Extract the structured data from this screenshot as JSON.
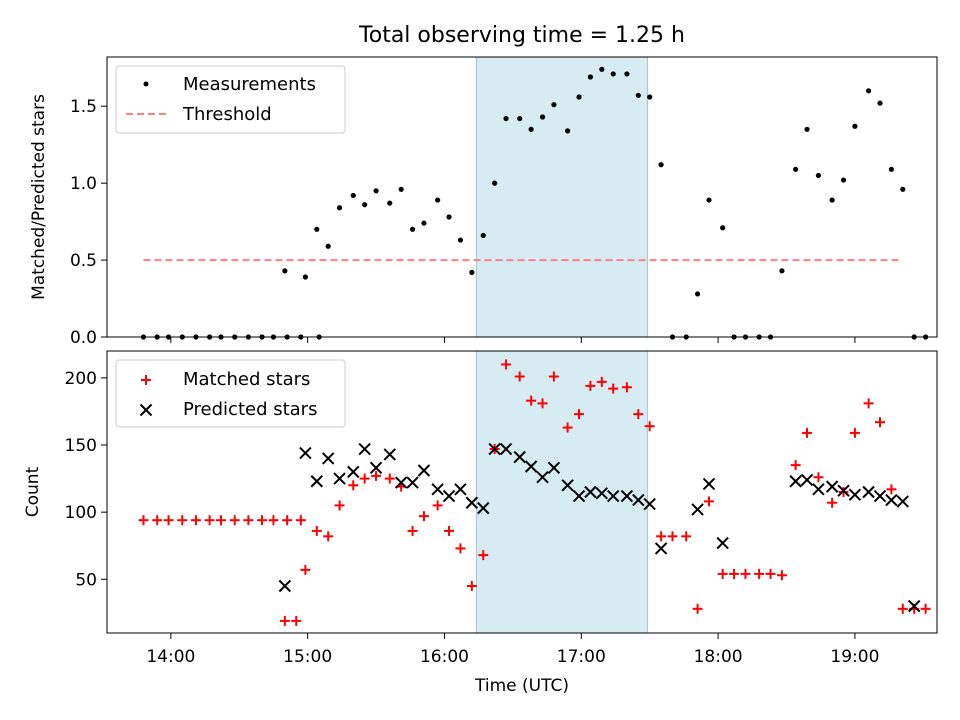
{
  "chart_data": [
    {
      "type": "scatter",
      "title": "Total observing time = 1.25 h",
      "xlabel": "",
      "ylabel": "Matched/Predicted stars",
      "ylim": [
        0,
        1.82
      ],
      "xlim": [
        "13:32",
        "19:36"
      ],
      "yticks": [
        "0.0",
        "0.5",
        "1.0",
        "1.5"
      ],
      "highlight_span": {
        "start": "16:14",
        "end": "17:29",
        "color": "#add8e6"
      },
      "legend": {
        "placement": "top-left",
        "entries": [
          "Measurements",
          "Threshold"
        ]
      },
      "threshold": {
        "name": "Threshold",
        "value": 0.5,
        "x_range": [
          "13:48",
          "19:20"
        ],
        "color": "#ff7f7f",
        "style": "dashed"
      },
      "series": [
        {
          "name": "Measurements",
          "color": "#000000",
          "marker": "dot",
          "points": [
            [
              "13:48",
              0
            ],
            [
              "13:54",
              0
            ],
            [
              "13:59",
              0
            ],
            [
              "14:05",
              0
            ],
            [
              "14:11",
              0
            ],
            [
              "14:17",
              0
            ],
            [
              "14:22",
              0
            ],
            [
              "14:28",
              0
            ],
            [
              "14:34",
              0
            ],
            [
              "14:40",
              0
            ],
            [
              "14:45",
              0
            ],
            [
              "14:51",
              0
            ],
            [
              "14:57",
              0
            ],
            [
              "14:50",
              0.43
            ],
            [
              "15:05",
              0
            ],
            [
              "14:59",
              0.39
            ],
            [
              "15:04",
              0.7
            ],
            [
              "15:09",
              0.59
            ],
            [
              "15:14",
              0.84
            ],
            [
              "15:20",
              0.92
            ],
            [
              "15:25",
              0.86
            ],
            [
              "15:30",
              0.95
            ],
            [
              "15:36",
              0.87
            ],
            [
              "15:41",
              0.96
            ],
            [
              "15:46",
              0.7
            ],
            [
              "15:51",
              0.74
            ],
            [
              "15:57",
              0.89
            ],
            [
              "16:02",
              0.78
            ],
            [
              "16:07",
              0.63
            ],
            [
              "16:12",
              0.42
            ],
            [
              "16:17",
              0.66
            ],
            [
              "16:22",
              1.0
            ],
            [
              "16:27",
              1.42
            ],
            [
              "16:33",
              1.42
            ],
            [
              "16:38",
              1.35
            ],
            [
              "16:43",
              1.43
            ],
            [
              "16:48",
              1.51
            ],
            [
              "16:54",
              1.34
            ],
            [
              "16:59",
              1.56
            ],
            [
              "17:04",
              1.69
            ],
            [
              "17:09",
              1.74
            ],
            [
              "17:14",
              1.71
            ],
            [
              "17:20",
              1.71
            ],
            [
              "17:25",
              1.57
            ],
            [
              "17:30",
              1.56
            ],
            [
              "17:35",
              1.12
            ],
            [
              "17:40",
              0
            ],
            [
              "17:46",
              0
            ],
            [
              "17:51",
              0.28
            ],
            [
              "17:56",
              0.89
            ],
            [
              "18:02",
              0.71
            ],
            [
              "18:07",
              0
            ],
            [
              "18:12",
              0
            ],
            [
              "18:18",
              0
            ],
            [
              "18:23",
              0
            ],
            [
              "18:28",
              0.43
            ],
            [
              "18:34",
              1.09
            ],
            [
              "18:39",
              1.35
            ],
            [
              "18:44",
              1.05
            ],
            [
              "18:50",
              0.89
            ],
            [
              "18:55",
              1.02
            ],
            [
              "19:00",
              1.37
            ],
            [
              "19:06",
              1.6
            ],
            [
              "19:11",
              1.52
            ],
            [
              "19:16",
              1.09
            ],
            [
              "19:21",
              0.96
            ],
            [
              "19:26",
              0
            ],
            [
              "19:31",
              0
            ]
          ]
        }
      ]
    },
    {
      "type": "scatter",
      "title": "",
      "xlabel": "Time (UTC)",
      "ylabel": "Count",
      "ylim": [
        10,
        220
      ],
      "xlim": [
        "13:32",
        "19:36"
      ],
      "xticks": [
        "14:00",
        "15:00",
        "16:00",
        "17:00",
        "18:00",
        "19:00"
      ],
      "yticks": [
        "50",
        "100",
        "150",
        "200"
      ],
      "highlight_span": {
        "start": "16:14",
        "end": "17:29",
        "color": "#add8e6"
      },
      "legend": {
        "placement": "top-left",
        "entries": [
          "Matched stars",
          "Predicted stars"
        ]
      },
      "series": [
        {
          "name": "Matched stars",
          "color": "#ff0000",
          "marker": "plus",
          "points": [
            [
              "13:48",
              94
            ],
            [
              "13:54",
              94
            ],
            [
              "13:59",
              94
            ],
            [
              "14:05",
              94
            ],
            [
              "14:11",
              94
            ],
            [
              "14:17",
              94
            ],
            [
              "14:22",
              94
            ],
            [
              "14:28",
              94
            ],
            [
              "14:34",
              94
            ],
            [
              "14:40",
              94
            ],
            [
              "14:45",
              94
            ],
            [
              "14:51",
              94
            ],
            [
              "14:57",
              94
            ],
            [
              "14:50",
              19
            ],
            [
              "14:55",
              19
            ],
            [
              "14:59",
              57
            ],
            [
              "15:04",
              86
            ],
            [
              "15:09",
              82
            ],
            [
              "15:14",
              105
            ],
            [
              "15:20",
              120
            ],
            [
              "15:25",
              125
            ],
            [
              "15:30",
              127
            ],
            [
              "15:36",
              125
            ],
            [
              "15:41",
              119
            ],
            [
              "15:46",
              86
            ],
            [
              "15:51",
              97
            ],
            [
              "15:57",
              105
            ],
            [
              "16:02",
              86
            ],
            [
              "16:07",
              73
            ],
            [
              "16:12",
              45
            ],
            [
              "16:17",
              68
            ],
            [
              "16:22",
              147
            ],
            [
              "16:27",
              210
            ],
            [
              "16:33",
              201
            ],
            [
              "16:38",
              183
            ],
            [
              "16:43",
              181
            ],
            [
              "16:48",
              201
            ],
            [
              "16:54",
              163
            ],
            [
              "16:59",
              173
            ],
            [
              "17:04",
              194
            ],
            [
              "17:09",
              197
            ],
            [
              "17:14",
              192
            ],
            [
              "17:20",
              193
            ],
            [
              "17:25",
              173
            ],
            [
              "17:30",
              164
            ],
            [
              "17:35",
              82
            ],
            [
              "17:40",
              82
            ],
            [
              "17:46",
              82
            ],
            [
              "17:51",
              28
            ],
            [
              "17:56",
              108
            ],
            [
              "18:02",
              54
            ],
            [
              "18:07",
              54
            ],
            [
              "18:12",
              54
            ],
            [
              "18:18",
              54
            ],
            [
              "18:23",
              54
            ],
            [
              "18:28",
              53
            ],
            [
              "18:34",
              135
            ],
            [
              "18:39",
              159
            ],
            [
              "18:44",
              126
            ],
            [
              "18:50",
              107
            ],
            [
              "18:55",
              115
            ],
            [
              "19:00",
              159
            ],
            [
              "19:06",
              181
            ],
            [
              "19:11",
              167
            ],
            [
              "19:16",
              117
            ],
            [
              "19:21",
              28
            ],
            [
              "19:26",
              28
            ],
            [
              "19:31",
              28
            ]
          ]
        },
        {
          "name": "Predicted stars",
          "color": "#000000",
          "marker": "x",
          "points": [
            [
              "14:50",
              45
            ],
            [
              "14:59",
              144
            ],
            [
              "15:04",
              123
            ],
            [
              "15:09",
              140
            ],
            [
              "15:14",
              125
            ],
            [
              "15:20",
              130
            ],
            [
              "15:25",
              147
            ],
            [
              "15:30",
              133
            ],
            [
              "15:36",
              143
            ],
            [
              "15:41",
              122
            ],
            [
              "15:46",
              122
            ],
            [
              "15:51",
              131
            ],
            [
              "15:57",
              117
            ],
            [
              "16:02",
              112
            ],
            [
              "16:07",
              117
            ],
            [
              "16:12",
              107
            ],
            [
              "16:17",
              103
            ],
            [
              "16:22",
              147
            ],
            [
              "16:27",
              147
            ],
            [
              "16:33",
              141
            ],
            [
              "16:38",
              134
            ],
            [
              "16:43",
              126
            ],
            [
              "16:48",
              133
            ],
            [
              "16:54",
              120
            ],
            [
              "16:59",
              112
            ],
            [
              "17:04",
              115
            ],
            [
              "17:09",
              114
            ],
            [
              "17:14",
              112
            ],
            [
              "17:20",
              112
            ],
            [
              "17:25",
              109
            ],
            [
              "17:30",
              106
            ],
            [
              "17:35",
              73
            ],
            [
              "17:51",
              102
            ],
            [
              "17:56",
              121
            ],
            [
              "18:02",
              77
            ],
            [
              "18:34",
              123
            ],
            [
              "18:39",
              124
            ],
            [
              "18:44",
              117
            ],
            [
              "18:50",
              119
            ],
            [
              "18:55",
              116
            ],
            [
              "19:00",
              113
            ],
            [
              "19:06",
              115
            ],
            [
              "19:11",
              112
            ],
            [
              "19:16",
              109
            ],
            [
              "19:21",
              108
            ],
            [
              "19:26",
              30
            ]
          ]
        }
      ]
    }
  ]
}
